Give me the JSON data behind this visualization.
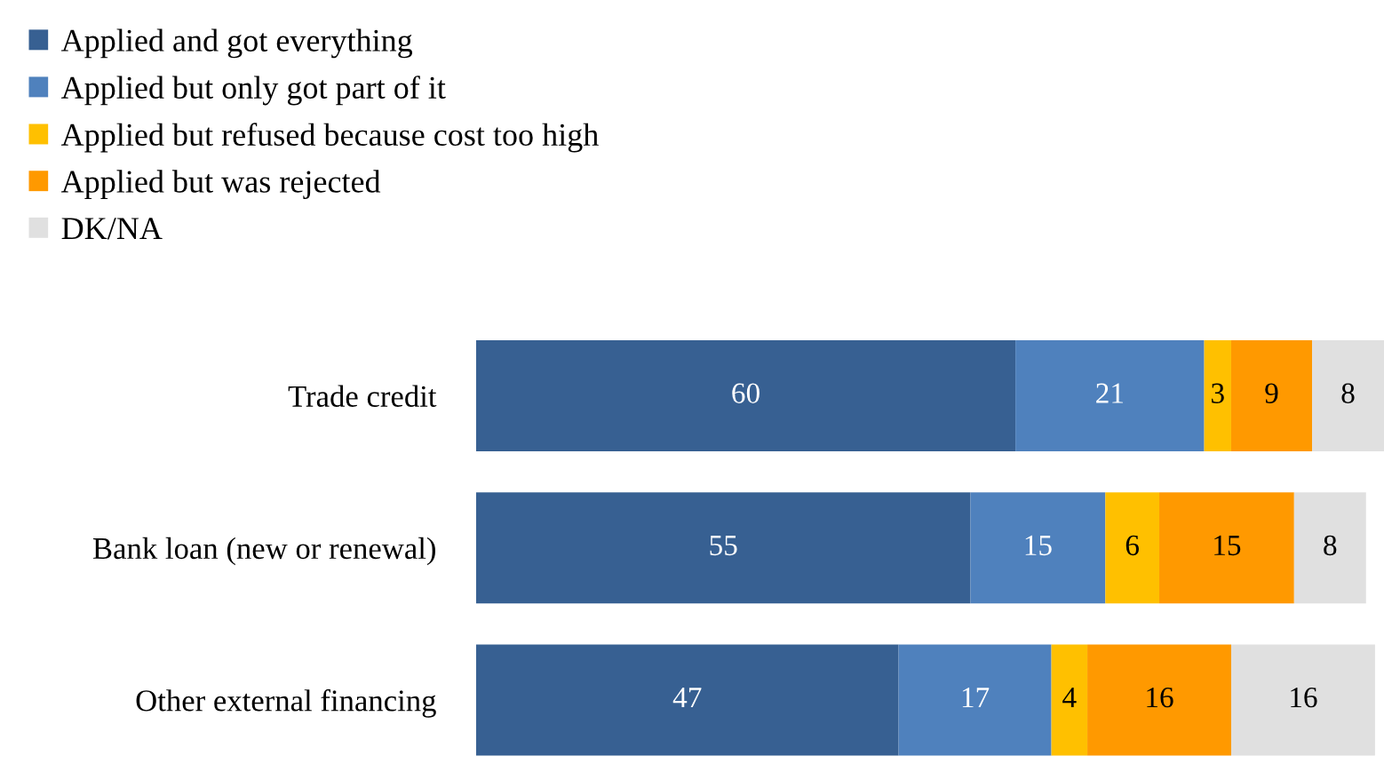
{
  "chart_data": {
    "type": "bar",
    "orientation": "horizontal",
    "stacked": true,
    "data_labels": true,
    "legend": "top left",
    "grid": false,
    "tick_labels": "y",
    "categories": [
      "Trade credit",
      "Bank loan (new or renewal)",
      "Other external financing"
    ],
    "series": [
      {
        "name": "Applied and got everything",
        "color": "#376092",
        "values": [
          60,
          55,
          47
        ]
      },
      {
        "name": "Applied but only got part of it",
        "color": "#4f81bd",
        "values": [
          21,
          15,
          17
        ]
      },
      {
        "name": "Applied but refused because cost too high",
        "color": "#ffc000",
        "values": [
          3,
          6,
          4
        ]
      },
      {
        "name": "Applied but was rejected",
        "color": "#ff9900",
        "values": [
          9,
          15,
          16
        ]
      },
      {
        "name": "DK/NA",
        "color": "#e0e0e0",
        "values": [
          8,
          8,
          16
        ]
      }
    ]
  }
}
